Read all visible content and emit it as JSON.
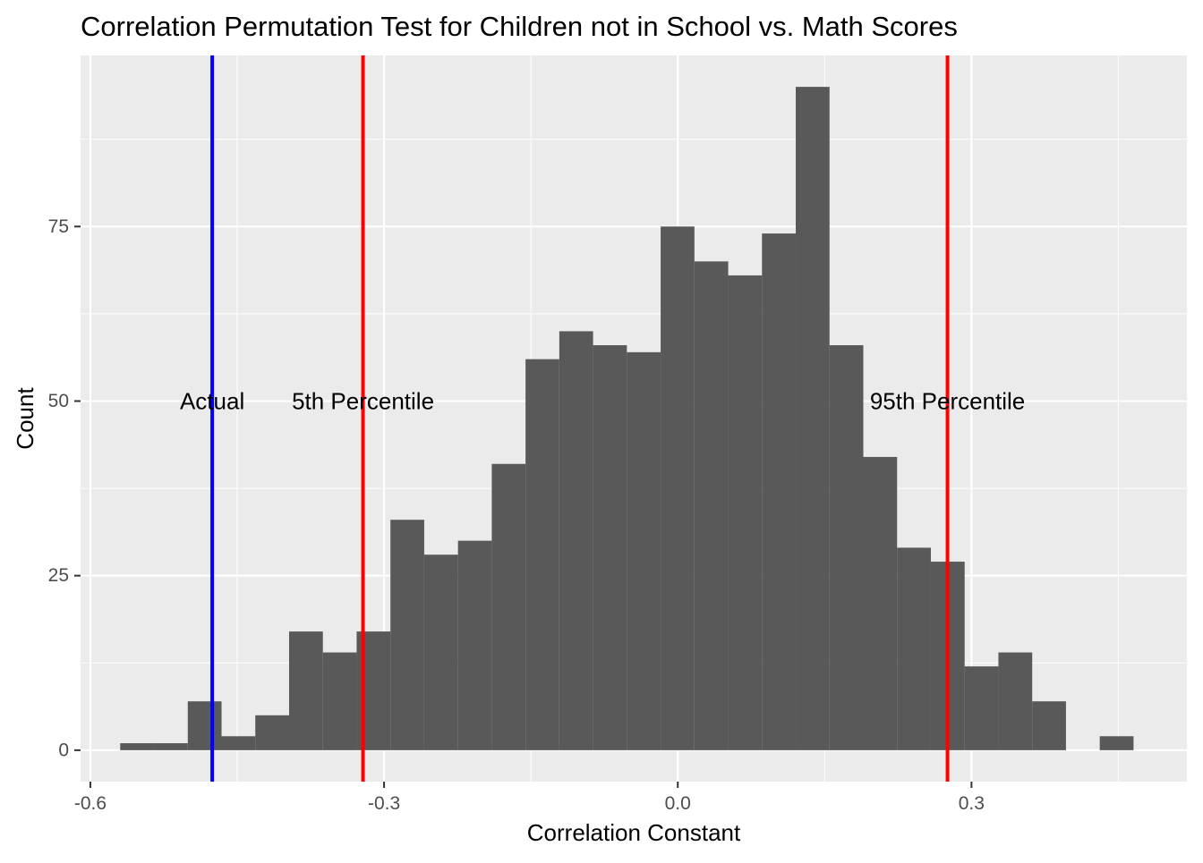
{
  "chart_data": {
    "type": "bar",
    "title": "Correlation Permutation Test for Children not in School vs. Math Scores",
    "xlabel": "Correlation Constant",
    "ylabel": "Count",
    "xlim": [
      -0.61,
      0.52
    ],
    "ylim": [
      -4.5,
      99.5
    ],
    "x_ticks": [
      -0.6,
      -0.3,
      0.0,
      0.3
    ],
    "x_tick_labels": [
      "-0.6",
      "-0.3",
      "0.0",
      "0.3"
    ],
    "y_ticks": [
      0,
      25,
      50,
      75
    ],
    "y_tick_labels": [
      "0",
      "25",
      "50",
      "75"
    ],
    "grid": true,
    "bin_width": 0.0345,
    "bins": [
      {
        "x0": -0.5695,
        "x1": -0.535,
        "count": 1
      },
      {
        "x0": -0.535,
        "x1": -0.5005,
        "count": 1
      },
      {
        "x0": -0.5005,
        "x1": -0.466,
        "count": 7
      },
      {
        "x0": -0.466,
        "x1": -0.4315,
        "count": 2
      },
      {
        "x0": -0.4315,
        "x1": -0.397,
        "count": 5
      },
      {
        "x0": -0.397,
        "x1": -0.3625,
        "count": 17
      },
      {
        "x0": -0.3625,
        "x1": -0.328,
        "count": 14
      },
      {
        "x0": -0.328,
        "x1": -0.2935,
        "count": 17
      },
      {
        "x0": -0.2935,
        "x1": -0.259,
        "count": 33
      },
      {
        "x0": -0.259,
        "x1": -0.2245,
        "count": 28
      },
      {
        "x0": -0.2245,
        "x1": -0.19,
        "count": 30
      },
      {
        "x0": -0.19,
        "x1": -0.1555,
        "count": 41
      },
      {
        "x0": -0.1555,
        "x1": -0.121,
        "count": 56
      },
      {
        "x0": -0.121,
        "x1": -0.0865,
        "count": 60
      },
      {
        "x0": -0.0865,
        "x1": -0.052,
        "count": 58
      },
      {
        "x0": -0.052,
        "x1": -0.0175,
        "count": 57
      },
      {
        "x0": -0.0175,
        "x1": 0.017,
        "count": 75
      },
      {
        "x0": 0.017,
        "x1": 0.0515,
        "count": 70
      },
      {
        "x0": 0.0515,
        "x1": 0.086,
        "count": 68
      },
      {
        "x0": 0.086,
        "x1": 0.1205,
        "count": 74
      },
      {
        "x0": 0.1205,
        "x1": 0.155,
        "count": 95
      },
      {
        "x0": 0.155,
        "x1": 0.1895,
        "count": 58
      },
      {
        "x0": 0.1895,
        "x1": 0.224,
        "count": 42
      },
      {
        "x0": 0.224,
        "x1": 0.2585,
        "count": 29
      },
      {
        "x0": 0.2585,
        "x1": 0.293,
        "count": 27
      },
      {
        "x0": 0.293,
        "x1": 0.3275,
        "count": 12
      },
      {
        "x0": 0.3275,
        "x1": 0.362,
        "count": 14
      },
      {
        "x0": 0.362,
        "x1": 0.3965,
        "count": 7
      },
      {
        "x0": 0.431,
        "x1": 0.4655,
        "count": 2
      }
    ],
    "vlines": [
      {
        "name": "Actual",
        "x": -0.4755,
        "color": "#0000FF"
      },
      {
        "name": "5th Percentile",
        "x": -0.3215,
        "color": "#FF0000"
      },
      {
        "name": "95th Percentile",
        "x": 0.2755,
        "color": "#FF0000"
      }
    ],
    "label_y": 50,
    "colors": {
      "panel": "#EBEBEB",
      "grid": "#FFFFFF",
      "bar": "#595959",
      "axis_text": "#4D4D4D",
      "text": "#000000"
    }
  }
}
